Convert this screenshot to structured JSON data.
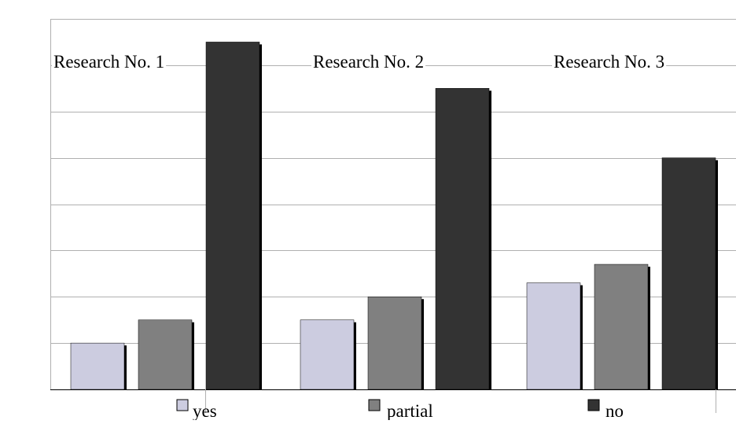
{
  "chart_data": {
    "type": "bar",
    "categories": [
      "Research No. 1",
      "Research No. 2",
      "Research No. 3"
    ],
    "series": [
      {
        "name": "yes",
        "values": [
          1,
          1.5,
          2.3
        ]
      },
      {
        "name": "partial",
        "values": [
          1.5,
          2,
          2.7
        ]
      },
      {
        "name": "no",
        "values": [
          7.5,
          6.5,
          5
        ]
      }
    ],
    "ylim": [
      0,
      8
    ],
    "y_gridlines": [
      1,
      2,
      3,
      4,
      5,
      6,
      7,
      8
    ],
    "grid": true,
    "legend_position": "bottom",
    "colors": {
      "yes": "#cccce0",
      "partial": "#808080",
      "no": "#333333",
      "shadow": "#000000",
      "grid": "#b0b0b0"
    }
  }
}
